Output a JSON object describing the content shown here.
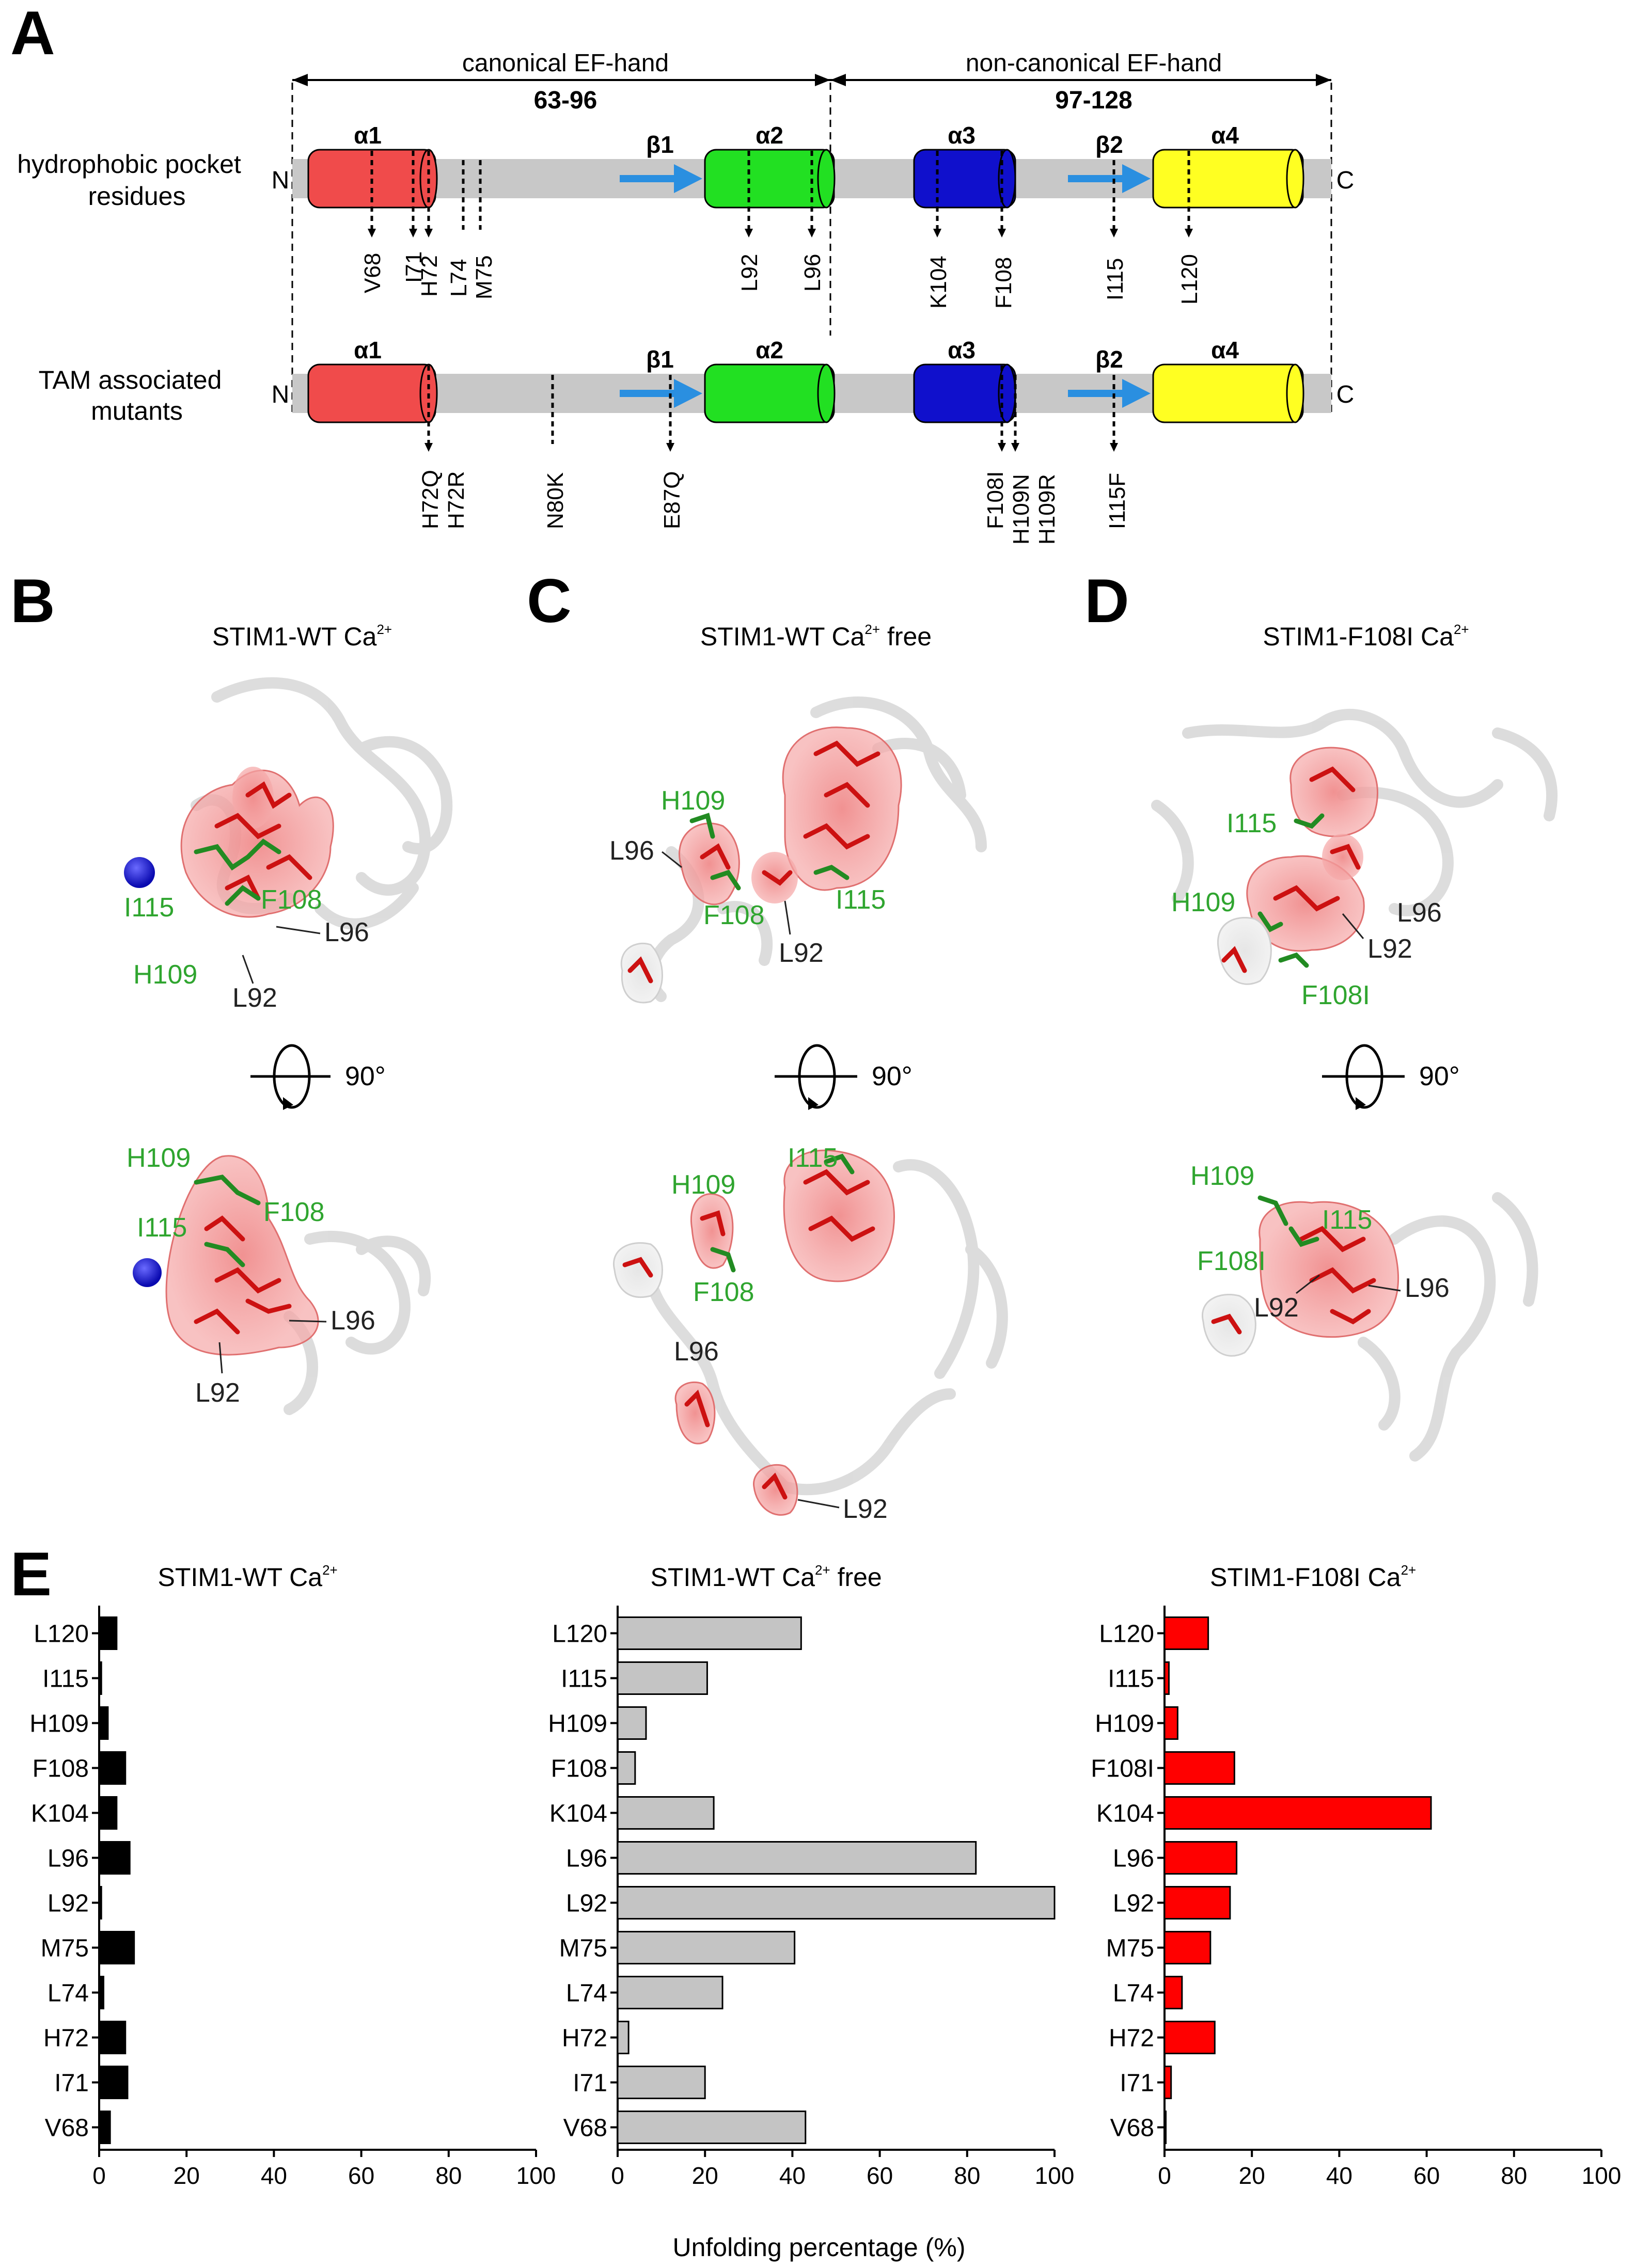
{
  "panel_a": {
    "letter": "A",
    "canonical": {
      "label": "canonical EF-hand",
      "range": "63-96"
    },
    "noncanonical": {
      "label": "non-canonical EF-hand",
      "range": "97-128"
    },
    "row1": {
      "label_line1": "hydrophobic pocket",
      "label_line2": "residues",
      "n": "N",
      "c": "C",
      "helices": [
        "α1",
        "α2",
        "α3",
        "α4"
      ],
      "strands": [
        "β1",
        "β2"
      ],
      "markers": [
        "V68",
        "I71",
        "H72",
        "L74",
        "M75",
        "L92",
        "L96",
        "K104",
        "F108",
        "I115",
        "L120"
      ]
    },
    "row2": {
      "label_line1": "TAM associated",
      "label_line2": "mutants",
      "n": "N",
      "c": "C",
      "helices": [
        "α1",
        "α2",
        "α3",
        "α4"
      ],
      "strands": [
        "β1",
        "β2"
      ],
      "markers": [
        "H72Q",
        "H72R",
        "N80K",
        "E87Q",
        "F108I",
        "H109N",
        "H109R",
        "I115F"
      ]
    },
    "colors": {
      "a1": "#f04b4b",
      "a2": "#22e022",
      "a3": "#1010cc",
      "a4": "#ffff22",
      "strand": "#2a8fe0",
      "bar": "#c8c8c8"
    }
  },
  "panel_b": {
    "letter": "B",
    "title": "STIM1-WT Ca",
    "title_sup": "2+",
    "top_labels": {
      "green": [
        "I115",
        "F108",
        "H109"
      ],
      "dark": [
        "L96",
        "L92"
      ]
    },
    "rotation": "90°",
    "bottom_labels": {
      "green": [
        "H109",
        "F108",
        "I115"
      ],
      "dark": [
        "L96",
        "L92"
      ]
    }
  },
  "panel_c": {
    "letter": "C",
    "title": "STIM1-WT Ca",
    "title_sup": "2+",
    "title_suffix": " free",
    "top_labels": {
      "green": [
        "H109",
        "F108",
        "I115"
      ],
      "dark": [
        "L96",
        "L92"
      ]
    },
    "rotation": "90°",
    "bottom_labels": {
      "green": [
        "H109",
        "I115",
        "F108"
      ],
      "dark": [
        "L96",
        "L92"
      ]
    }
  },
  "panel_d": {
    "letter": "D",
    "title": "STIM1-F108I Ca",
    "title_sup": "2+",
    "top_labels": {
      "green": [
        "I115",
        "H109",
        "F108I"
      ],
      "dark": [
        "L96",
        "L92"
      ]
    },
    "rotation": "90°",
    "bottom_labels": {
      "green": [
        "H109",
        "I115",
        "F108I"
      ],
      "dark": [
        "L96",
        "L92"
      ]
    }
  },
  "panel_e": {
    "letter": "E",
    "xlabel": "Unfolding percentage (%)"
  },
  "chart_data": [
    {
      "type": "bar",
      "orientation": "horizontal",
      "title": "STIM1-WT Ca2+",
      "categories": [
        "L120",
        "I115",
        "H109",
        "F108",
        "K104",
        "L96",
        "L92",
        "M75",
        "L74",
        "H72",
        "I71",
        "V68"
      ],
      "values": [
        4,
        0.5,
        2,
        6,
        4,
        7,
        0.5,
        8,
        1,
        6,
        6.5,
        2.5
      ],
      "xlim": [
        0,
        100
      ],
      "xticks": [
        0,
        20,
        40,
        60,
        80,
        100
      ],
      "color": "#000000"
    },
    {
      "type": "bar",
      "orientation": "horizontal",
      "title": "STIM1-WT Ca2+ free",
      "categories": [
        "L120",
        "I115",
        "H109",
        "F108",
        "K104",
        "L96",
        "L92",
        "M75",
        "L74",
        "H72",
        "I71",
        "V68"
      ],
      "values": [
        42,
        20.5,
        6.5,
        4,
        22,
        82,
        100,
        40.5,
        24,
        2.5,
        20,
        43
      ],
      "xlim": [
        0,
        100
      ],
      "xticks": [
        0,
        20,
        40,
        60,
        80,
        100
      ],
      "color": "#c4c4c4"
    },
    {
      "type": "bar",
      "orientation": "horizontal",
      "title": "STIM1-F108I Ca2+",
      "categories": [
        "L120",
        "I115",
        "H109",
        "F108I",
        "K104",
        "L96",
        "L92",
        "M75",
        "L74",
        "H72",
        "I71",
        "V68"
      ],
      "values": [
        10,
        1,
        3,
        16,
        61,
        16.5,
        15,
        10.5,
        4,
        11.5,
        1.5,
        0.3
      ],
      "xlim": [
        0,
        100
      ],
      "xticks": [
        0,
        20,
        40,
        60,
        80,
        100
      ],
      "color": "#ff0000"
    }
  ]
}
